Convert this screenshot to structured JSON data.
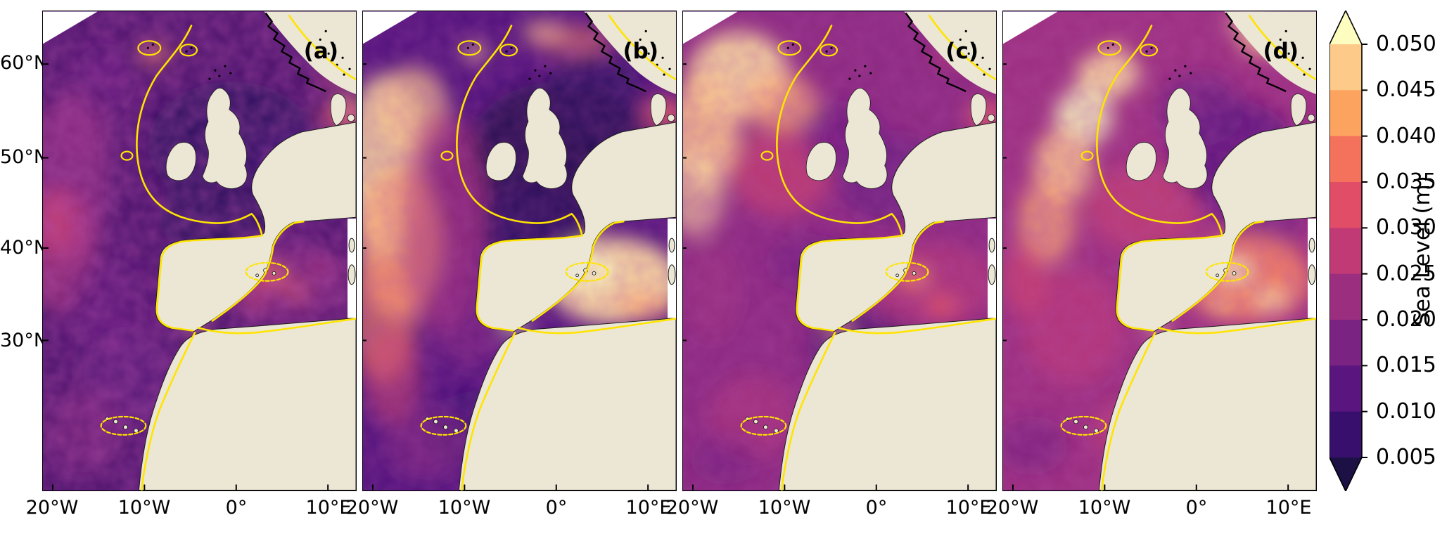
{
  "figure": {
    "background": "#ffffff"
  },
  "panels": [
    {
      "label": "(a)"
    },
    {
      "label": "(b)"
    },
    {
      "label": "(c)"
    },
    {
      "label": "(d)"
    }
  ],
  "axes": {
    "lat_ticks": [
      "60°N",
      "50°N",
      "40°N",
      "30°N"
    ],
    "lon_ticks": [
      "20°W",
      "10°W",
      "0°",
      "10°E"
    ]
  },
  "colorbar": {
    "label": "Sea Level (m)",
    "ticks": [
      "0.050",
      "0.045",
      "0.040",
      "0.035",
      "0.030",
      "0.025",
      "0.020",
      "0.015",
      "0.010",
      "0.005"
    ],
    "segment_colors_top_to_bottom": [
      "#fdca8a",
      "#fca35f",
      "#f4715c",
      "#e14d66",
      "#c13a76",
      "#9c2e7f",
      "#7b2382",
      "#5a167e",
      "#390f6e"
    ],
    "over_color": "#fcfdbf",
    "under_color": "#1c1044"
  },
  "map": {
    "land_color": "#ece7d5",
    "out_of_domain_color": "#ffffff",
    "contour_color": "#ffe400",
    "coastline_color": "#1c1c1c"
  }
}
